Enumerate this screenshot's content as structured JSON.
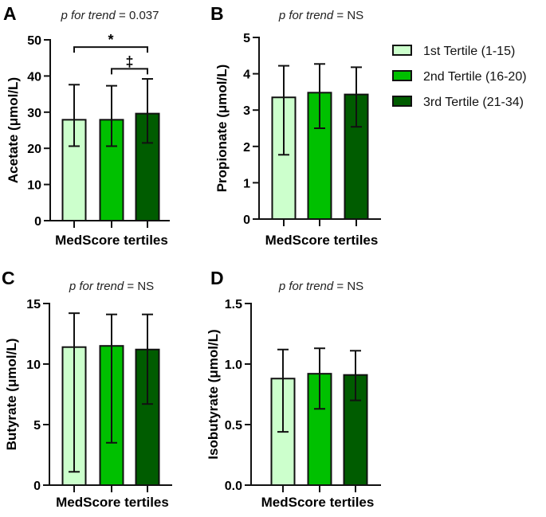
{
  "legend": {
    "entries": [
      {
        "label": "1st Tertile (1-15)",
        "color": "#ccffcc"
      },
      {
        "label": "2nd Tertile (16-20)",
        "color": "#00c000"
      },
      {
        "label": "3rd Tertile (21-34)",
        "color": "#005c00"
      }
    ],
    "placement": "right of panel B"
  },
  "chart_data": [
    {
      "panel": "A",
      "type": "bar",
      "title": "p for trend = 0.037",
      "title_italic": "p for trend",
      "title_rest": " = 0.037",
      "xlabel": "MedScore tertiles",
      "ylabel": "Acetate (μmol/L)",
      "ylim": [
        0,
        50
      ],
      "yticks": [
        "0",
        "10",
        "20",
        "30",
        "40",
        "50"
      ],
      "ytick_values": [
        0,
        10,
        20,
        30,
        40,
        50
      ],
      "categories": [
        "1st Tertile (1-15)",
        "2nd Tertile (16-20)",
        "3rd Tertile (21-34)"
      ],
      "values": [
        27.9,
        27.9,
        29.6
      ],
      "error_low": [
        20.6,
        20.6,
        21.5
      ],
      "error_high": [
        37.6,
        37.3,
        39.2
      ],
      "annotations": [
        {
          "text": "*",
          "from": 0,
          "to": 2,
          "level": 48
        },
        {
          "text": "‡",
          "from": 1,
          "to": 2,
          "level": 42
        }
      ]
    },
    {
      "panel": "B",
      "type": "bar",
      "title": "p for trend = NS",
      "title_italic": "p for trend",
      "title_rest": " = NS",
      "xlabel": "MedScore tertiles",
      "ylabel": "Propionate (μmol/L)",
      "ylim": [
        0,
        5
      ],
      "yticks": [
        "0",
        "1",
        "2",
        "3",
        "4",
        "5"
      ],
      "ytick_values": [
        0,
        1,
        2,
        3,
        4,
        5
      ],
      "categories": [
        "1st Tertile (1-15)",
        "2nd Tertile (16-20)",
        "3rd Tertile (21-34)"
      ],
      "values": [
        3.35,
        3.48,
        3.43
      ],
      "error_low": [
        1.77,
        2.5,
        2.54
      ],
      "error_high": [
        4.22,
        4.27,
        4.18
      ],
      "annotations": []
    },
    {
      "panel": "C",
      "type": "bar",
      "title": "p for trend = NS",
      "title_italic": "p for trend",
      "title_rest": " = NS",
      "xlabel": "MedScore tertiles",
      "ylabel": "Butyrate (μmol/L)",
      "ylim": [
        0,
        15
      ],
      "yticks": [
        "0",
        "5",
        "10",
        "15"
      ],
      "ytick_values": [
        0,
        5,
        10,
        15
      ],
      "categories": [
        "1st Tertile (1-15)",
        "2nd Tertile (16-20)",
        "3rd Tertile (21-34)"
      ],
      "values": [
        11.4,
        11.5,
        11.2
      ],
      "error_low": [
        1.1,
        3.5,
        6.7
      ],
      "error_high": [
        14.2,
        14.1,
        14.1
      ],
      "annotations": []
    },
    {
      "panel": "D",
      "type": "bar",
      "title": "p for trend = NS",
      "title_italic": "p for trend",
      "title_rest": " = NS",
      "xlabel": "MedScore tertiles",
      "ylabel": "Isobutyrate (μmol/L)",
      "ylim": [
        0,
        1.5
      ],
      "yticks": [
        "0.0",
        "0.5",
        "1.0",
        "1.5"
      ],
      "ytick_values": [
        0,
        0.5,
        1,
        1.5
      ],
      "categories": [
        "1st Tertile (1-15)",
        "2nd Tertile (16-20)",
        "3rd Tertile (21-34)"
      ],
      "values": [
        0.88,
        0.92,
        0.91
      ],
      "error_low": [
        0.44,
        0.63,
        0.7
      ],
      "error_high": [
        1.12,
        1.13,
        1.11
      ],
      "annotations": []
    }
  ]
}
